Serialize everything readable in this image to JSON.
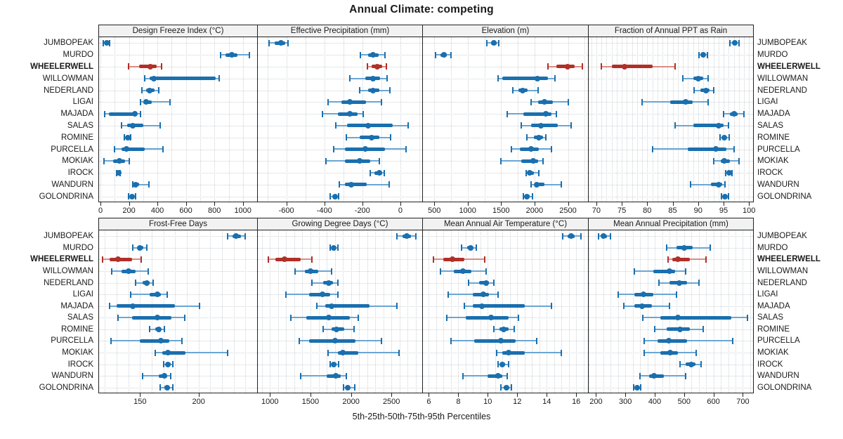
{
  "title": "Annual Climate: competing",
  "caption": "5th-25th-50th-75th-95th Percentiles",
  "sites": [
    "JUMBOPEAK",
    "MURDO",
    "WHEELERWELL",
    "WILLOWMAN",
    "NEDERLAND",
    "LIGAI",
    "MAJADA",
    "SALAS",
    "ROMINE",
    "PURCELLA",
    "MOKIAK",
    "IROCK",
    "WANDURN",
    "GOLONDRINA"
  ],
  "highlight_site": "WHEELERWELL",
  "colors": {
    "series": "#1a6fae",
    "series_light": "#6ba6d4",
    "highlight": "#b03028",
    "highlight_light": "#d98d84",
    "header_bg": "#f2f2f2",
    "grid": "#cdd2d6",
    "border": "#222222"
  },
  "chart_data": {
    "type": "dotplot-percentiles",
    "percentiles": [
      5,
      25,
      50,
      75,
      95
    ],
    "legend_position": "bottom-caption",
    "grid": true,
    "panels": [
      {
        "label": "Design Freeze Index (°C)",
        "row": 0,
        "col": 0,
        "xlim": [
          -10,
          1100
        ],
        "ticks": [
          0,
          200,
          400,
          600,
          800,
          1000
        ],
        "grid_step": 100,
        "values": [
          [
            20,
            35,
            45,
            55,
            65
          ],
          [
            845,
            880,
            920,
            960,
            1045
          ],
          [
            195,
            270,
            350,
            395,
            430
          ],
          [
            310,
            345,
            375,
            810,
            835
          ],
          [
            290,
            320,
            345,
            380,
            410
          ],
          [
            280,
            300,
            320,
            360,
            490
          ],
          [
            30,
            60,
            240,
            255,
            280
          ],
          [
            150,
            185,
            225,
            300,
            420
          ],
          [
            165,
            180,
            190,
            200,
            210
          ],
          [
            100,
            150,
            180,
            310,
            440
          ],
          [
            25,
            90,
            135,
            175,
            200
          ],
          [
            115,
            122,
            127,
            133,
            140
          ],
          [
            225,
            235,
            245,
            270,
            340
          ],
          [
            195,
            210,
            222,
            235,
            248
          ]
        ]
      },
      {
        "label": "Effective Precipitation (mm)",
        "row": 0,
        "col": 1,
        "xlim": [
          -750,
          115
        ],
        "ticks": [
          -600,
          -400,
          -200,
          0
        ],
        "grid_step": 100,
        "values": [
          [
            -690,
            -660,
            -630,
            -605,
            -590
          ],
          [
            -210,
            -170,
            -145,
            -115,
            -80
          ],
          [
            -175,
            -150,
            -120,
            -95,
            -75
          ],
          [
            -265,
            -185,
            -145,
            -105,
            -70
          ],
          [
            -215,
            -170,
            -145,
            -110,
            -55
          ],
          [
            -380,
            -310,
            -265,
            -180,
            -100
          ],
          [
            -410,
            -330,
            -265,
            -225,
            -195
          ],
          [
            -340,
            -280,
            -170,
            -40,
            40
          ],
          [
            -285,
            -215,
            -150,
            -110,
            -50
          ],
          [
            -350,
            -290,
            -185,
            -80,
            30
          ],
          [
            -390,
            -290,
            -215,
            -160,
            -110
          ],
          [
            -160,
            -135,
            -110,
            -95,
            -85
          ],
          [
            -320,
            -290,
            -260,
            -175,
            -60
          ],
          [
            -370,
            -355,
            -345,
            -335,
            -325
          ]
        ]
      },
      {
        "label": "Elevation (m)",
        "row": 0,
        "col": 2,
        "xlim": [
          330,
          2800
        ],
        "ticks": [
          500,
          1000,
          1500,
          2000,
          2500
        ],
        "grid_step": 250,
        "values": [
          [
            1290,
            1350,
            1390,
            1430,
            1460
          ],
          [
            520,
            590,
            640,
            690,
            750
          ],
          [
            2200,
            2330,
            2490,
            2600,
            2720
          ],
          [
            1450,
            1520,
            2040,
            2200,
            2310
          ],
          [
            1680,
            1760,
            1820,
            1900,
            2050
          ],
          [
            1950,
            2050,
            2150,
            2280,
            2500
          ],
          [
            1590,
            1830,
            2170,
            2250,
            2330
          ],
          [
            1800,
            1950,
            2100,
            2350,
            2550
          ],
          [
            1880,
            1990,
            2060,
            2130,
            2170
          ],
          [
            1650,
            1780,
            1950,
            2060,
            2250
          ],
          [
            1500,
            1800,
            1980,
            2050,
            2130
          ],
          [
            1870,
            1905,
            1930,
            1990,
            2060
          ],
          [
            1950,
            2000,
            2030,
            2150,
            2400
          ],
          [
            1830,
            1860,
            1890,
            1930,
            1970
          ]
        ]
      },
      {
        "label": "Fraction of Annual PPT as Rain",
        "row": 0,
        "col": 3,
        "xlim": [
          68.5,
          100.8
        ],
        "ticks": [
          70,
          75,
          80,
          85,
          90,
          95,
          100
        ],
        "grid_step": 1,
        "values": [
          [
            96.3,
            96.8,
            97.2,
            97.6,
            98.0
          ],
          [
            90.2,
            90.6,
            91.0,
            91.4,
            91.8
          ],
          [
            71.0,
            73.0,
            75.5,
            81.0,
            85.5
          ],
          [
            87.0,
            89.0,
            90.0,
            91.0,
            92.0
          ],
          [
            89.2,
            90.5,
            91.5,
            92.3,
            93.1
          ],
          [
            79.0,
            84.5,
            87.5,
            89.0,
            92.0
          ],
          [
            95.0,
            96.3,
            97.0,
            97.8,
            99.0
          ],
          [
            85.5,
            89.0,
            94.0,
            95.0,
            96.0
          ],
          [
            94.3,
            94.8,
            95.1,
            95.5,
            96.1
          ],
          [
            81.0,
            88.0,
            93.5,
            95.5,
            97.0
          ],
          [
            93.0,
            94.5,
            95.1,
            96.3,
            98.0
          ],
          [
            95.4,
            95.8,
            96.1,
            96.4,
            96.7
          ],
          [
            88.5,
            92.5,
            94.0,
            94.7,
            95.3
          ],
          [
            94.6,
            95.0,
            95.3,
            95.6,
            96.0
          ]
        ]
      },
      {
        "label": "Frost-Free Days",
        "row": 1,
        "col": 0,
        "xlim": [
          115,
          250
        ],
        "ticks": [
          150,
          200
        ],
        "grid_step": 10,
        "values": [
          [
            225,
            229,
            232,
            236,
            240
          ],
          [
            144,
            148,
            150,
            153,
            156
          ],
          [
            118,
            124,
            131,
            143,
            151
          ],
          [
            126,
            134,
            140,
            146,
            157
          ],
          [
            146,
            152,
            156,
            158,
            161
          ],
          [
            142,
            158,
            165,
            168,
            173
          ],
          [
            124,
            130,
            144,
            180,
            201
          ],
          [
            131,
            143,
            165,
            177,
            188
          ],
          [
            158,
            163,
            166,
            168,
            171
          ],
          [
            125,
            150,
            168,
            175,
            186
          ],
          [
            163,
            169,
            174,
            189,
            225
          ],
          [
            170,
            172,
            174,
            176,
            178
          ],
          [
            152,
            166,
            171,
            173,
            176
          ],
          [
            167,
            171,
            173,
            175,
            178
          ]
        ]
      },
      {
        "label": "Growing Degree Days (°C)",
        "row": 1,
        "col": 1,
        "xlim": [
          850,
          2880
        ],
        "ticks": [
          1000,
          1500,
          2000,
          2500
        ],
        "grid_step": 100,
        "values": [
          [
            2570,
            2640,
            2690,
            2740,
            2800
          ],
          [
            1740,
            1770,
            1790,
            1815,
            1835
          ],
          [
            980,
            1070,
            1180,
            1380,
            1520
          ],
          [
            1310,
            1430,
            1500,
            1600,
            1760
          ],
          [
            1520,
            1660,
            1730,
            1780,
            1840
          ],
          [
            1200,
            1480,
            1650,
            1740,
            1840
          ],
          [
            1580,
            1680,
            1760,
            2230,
            2570
          ],
          [
            1260,
            1450,
            1730,
            1990,
            2090
          ],
          [
            1660,
            1760,
            1820,
            1920,
            2040
          ],
          [
            1360,
            1480,
            1800,
            2060,
            2380
          ],
          [
            1720,
            1840,
            1900,
            2090,
            2590
          ],
          [
            1740,
            1760,
            1785,
            1820,
            1850
          ],
          [
            1380,
            1700,
            1810,
            1870,
            1940
          ],
          [
            1905,
            1940,
            1960,
            1990,
            2050
          ]
        ]
      },
      {
        "label": "Mean Annual Air Temperature (°C)",
        "row": 1,
        "col": 2,
        "xlim": [
          5.6,
          16.8
        ],
        "ticks": [
          6,
          8,
          10,
          12,
          14,
          16
        ],
        "grid_step": 0.5,
        "values": [
          [
            15.1,
            15.4,
            15.65,
            15.9,
            16.3
          ],
          [
            8.2,
            8.6,
            8.85,
            9.0,
            9.2
          ],
          [
            6.3,
            7.0,
            7.6,
            8.4,
            9.8
          ],
          [
            6.8,
            7.7,
            8.3,
            8.9,
            9.9
          ],
          [
            8.7,
            9.4,
            9.9,
            10.1,
            10.4
          ],
          [
            7.3,
            9.0,
            9.7,
            10.1,
            10.7
          ],
          [
            8.4,
            9.0,
            9.6,
            12.5,
            14.3
          ],
          [
            7.2,
            8.5,
            10.2,
            11.4,
            12.1
          ],
          [
            10.4,
            10.8,
            11.1,
            11.4,
            11.8
          ],
          [
            7.5,
            9.1,
            10.9,
            11.9,
            13.3
          ],
          [
            10.6,
            11.0,
            11.4,
            12.5,
            15.0
          ],
          [
            10.7,
            10.9,
            11.0,
            11.2,
            11.4
          ],
          [
            8.3,
            10.0,
            10.7,
            11.0,
            11.3
          ],
          [
            10.9,
            11.1,
            11.25,
            11.4,
            11.6
          ]
        ]
      },
      {
        "label": "Mean Annual Precipitation (mm)",
        "row": 1,
        "col": 3,
        "xlim": [
          175,
          735
        ],
        "ticks": [
          200,
          300,
          400,
          500,
          600,
          700
        ],
        "grid_step": 25,
        "values": [
          [
            208,
            218,
            226,
            238,
            250
          ],
          [
            440,
            475,
            500,
            530,
            590
          ],
          [
            445,
            460,
            480,
            520,
            575
          ],
          [
            330,
            395,
            450,
            470,
            505
          ],
          [
            415,
            450,
            483,
            510,
            550
          ],
          [
            275,
            330,
            362,
            395,
            475
          ],
          [
            295,
            330,
            357,
            390,
            450
          ],
          [
            360,
            420,
            480,
            660,
            715
          ],
          [
            400,
            440,
            487,
            520,
            565
          ],
          [
            365,
            410,
            447,
            510,
            665
          ],
          [
            365,
            420,
            452,
            480,
            540
          ],
          [
            485,
            505,
            524,
            540,
            557
          ],
          [
            350,
            380,
            397,
            430,
            505
          ],
          [
            328,
            334,
            340,
            346,
            352
          ]
        ]
      }
    ]
  }
}
